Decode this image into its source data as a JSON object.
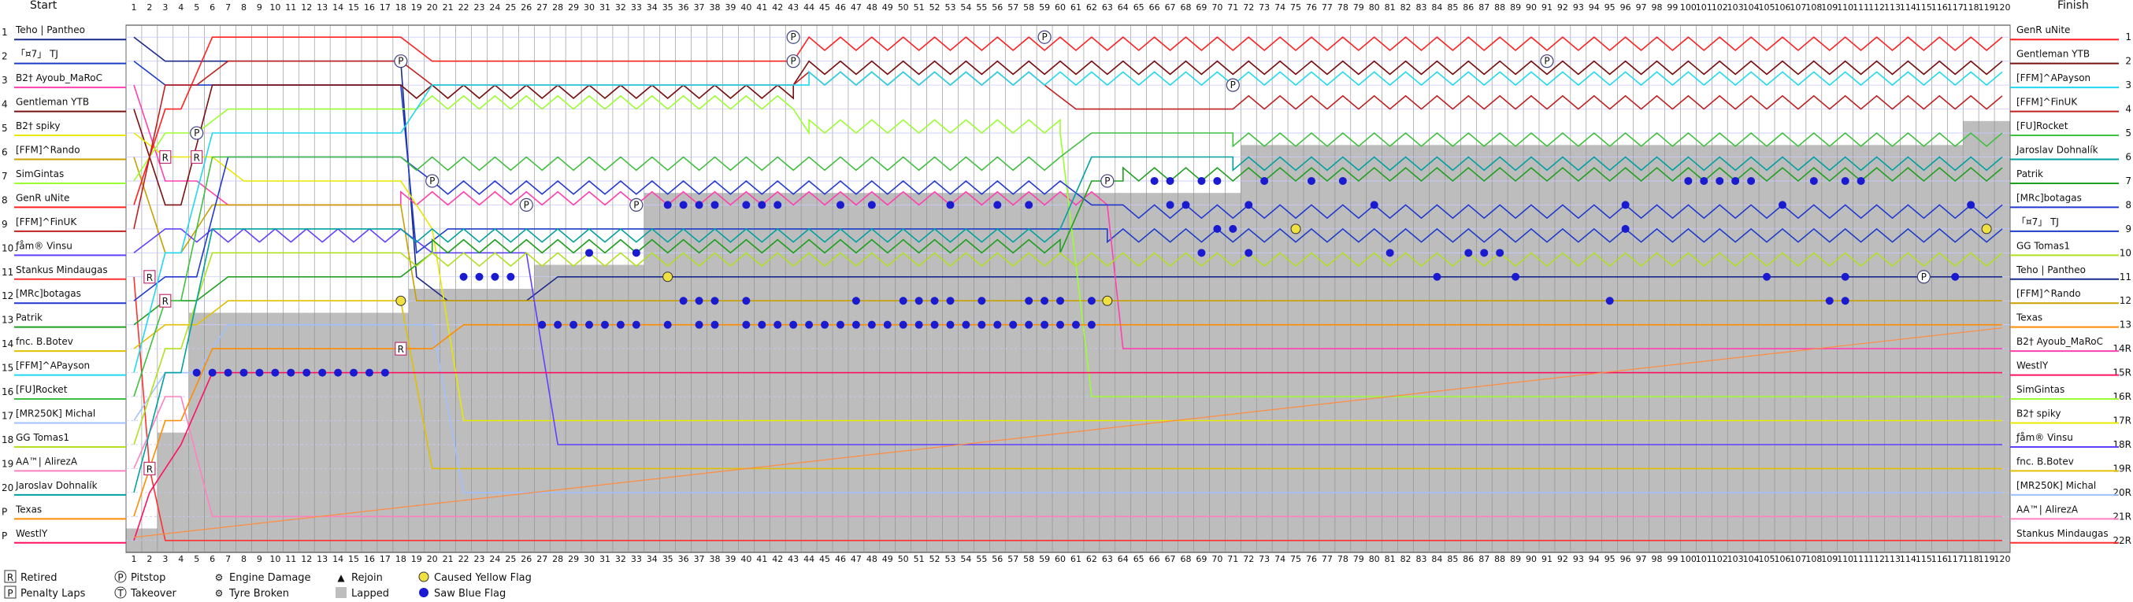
{
  "chart_data": {
    "type": "line",
    "header": {
      "start": "Start",
      "finish": "Finish"
    },
    "laps": 120,
    "positions": 22,
    "start_labels": [
      "1",
      "2",
      "3",
      "4",
      "5",
      "6",
      "7",
      "8",
      "9",
      "10",
      "11",
      "12",
      "13",
      "14",
      "15",
      "16",
      "17",
      "18",
      "19",
      "20",
      "P",
      "P"
    ],
    "start_grid": [
      "Teho | Pantheo",
      "「¤7」 TJ",
      "B2† Ayoub_MaRoC",
      "Gentleman YTB",
      "B2† spiky",
      "[FFM]^Rando",
      "SimGintas",
      "GenR uNite",
      "[FFM]^FinUK",
      "ƒåm® Vinsu",
      "Stankus Mindaugas",
      "[MRc]botagas",
      "Patrik",
      "fnc. B.Botev",
      "[FFM]^APayson",
      "[FU]Rocket",
      "[MR250K] Michal",
      "GG Tomas1",
      "AA™| AlirezA",
      "Jaroslav Dohnalík",
      "Texas",
      "WestlY"
    ],
    "finish_labels": [
      "1",
      "2",
      "3",
      "4",
      "5",
      "6",
      "7",
      "8",
      "9",
      "10",
      "11",
      "12",
      "13",
      "14R",
      "15R",
      "16R",
      "17R",
      "18R",
      "19R",
      "20R",
      "21R",
      "22R"
    ],
    "finish_order": [
      "GenR uNite",
      "Gentleman YTB",
      "[FFM]^APayson",
      "[FFM]^FinUK",
      "[FU]Rocket",
      "Jaroslav Dohnalík",
      "Patrik",
      "[MRc]botagas",
      "「¤7」 TJ",
      "GG Tomas1",
      "Teho | Pantheo",
      "[FFM]^Rando",
      "Texas",
      "B2† Ayoub_MaRoC",
      "WestlY",
      "SimGintas",
      "B2† spiky",
      "ƒåm® Vinsu",
      "fnc. B.Botev",
      "[MR250K] Michal",
      "AA™| AlirezA",
      "Stankus Mindaugas"
    ],
    "series": [
      {
        "name": "Teho | Pantheo",
        "color": "#1a2a8a",
        "points": [
          [
            1,
            1
          ],
          [
            18,
            2
          ],
          [
            19,
            11
          ],
          [
            26,
            12
          ],
          [
            64,
            11
          ],
          [
            120,
            11
          ]
        ]
      },
      {
        "name": "「¤7」 TJ",
        "color": "#1d3cc9",
        "points": [
          [
            1,
            2
          ],
          [
            18,
            3
          ],
          [
            19,
            10
          ],
          [
            63,
            9
          ],
          [
            120,
            9
          ]
        ]
      },
      {
        "name": "B2† Ayoub_MaRoC",
        "color": "#ff40b0",
        "points": [
          [
            1,
            3
          ],
          [
            5,
            7
          ],
          [
            18,
            8
          ],
          [
            26,
            8
          ],
          [
            35,
            8
          ],
          [
            63,
            8
          ],
          [
            64,
            14
          ],
          [
            120,
            14
          ]
        ]
      },
      {
        "name": "Gentleman YTB",
        "color": "#7a1010",
        "points": [
          [
            1,
            4
          ],
          [
            4,
            8
          ],
          [
            18,
            3
          ],
          [
            43,
            3
          ],
          [
            44,
            2
          ],
          [
            120,
            2
          ]
        ]
      },
      {
        "name": "B2† spiky",
        "color": "#e8e800",
        "points": [
          [
            1,
            5
          ],
          [
            6,
            6
          ],
          [
            18,
            7
          ],
          [
            20,
            9
          ],
          [
            64,
            17
          ],
          [
            120,
            17
          ]
        ]
      },
      {
        "name": "[FFM]^Rando",
        "color": "#c8a000",
        "points": [
          [
            1,
            6
          ],
          [
            4,
            10
          ],
          [
            18,
            8
          ],
          [
            19,
            12
          ],
          [
            120,
            12
          ]
        ]
      },
      {
        "name": "SimGintas",
        "color": "#9aff30",
        "points": [
          [
            1,
            7
          ],
          [
            5,
            5
          ],
          [
            19,
            4
          ],
          [
            43,
            4
          ],
          [
            44,
            5
          ],
          [
            60,
            5
          ],
          [
            64,
            16
          ],
          [
            120,
            16
          ]
        ]
      },
      {
        "name": "GenR uNite",
        "color": "#ff2020",
        "points": [
          [
            1,
            8
          ],
          [
            4,
            4
          ],
          [
            18,
            1
          ],
          [
            43,
            2
          ],
          [
            44,
            1
          ],
          [
            120,
            1
          ]
        ]
      },
      {
        "name": "[FFM]^FinUK",
        "color": "#c02020",
        "points": [
          [
            1,
            9
          ],
          [
            5,
            3
          ],
          [
            18,
            2
          ],
          [
            43,
            3
          ],
          [
            59,
            3
          ],
          [
            71,
            4
          ],
          [
            120,
            4
          ]
        ]
      },
      {
        "name": "ƒåm® Vinsu",
        "color": "#6040ff",
        "points": [
          [
            1,
            10
          ],
          [
            4,
            9
          ],
          [
            18,
            9
          ],
          [
            26,
            10
          ],
          [
            64,
            18
          ],
          [
            120,
            18
          ]
        ]
      },
      {
        "name": "Stankus Mindaugas",
        "color": "#ff3030",
        "points": [
          [
            1,
            11
          ],
          [
            2,
            19
          ],
          [
            3,
            22
          ],
          [
            120,
            22
          ]
        ]
      },
      {
        "name": "[MRc]botagas",
        "color": "#2038d0",
        "points": [
          [
            1,
            12
          ],
          [
            5,
            11
          ],
          [
            18,
            6
          ],
          [
            20,
            7
          ],
          [
            60,
            7
          ],
          [
            64,
            8
          ],
          [
            120,
            8
          ]
        ]
      },
      {
        "name": "Patrik",
        "color": "#20a020",
        "points": [
          [
            1,
            13
          ],
          [
            5,
            12
          ],
          [
            18,
            11
          ],
          [
            20,
            10
          ],
          [
            60,
            10
          ],
          [
            64,
            7
          ],
          [
            120,
            7
          ]
        ]
      },
      {
        "name": "fnc. B.Botev",
        "color": "#e0c000",
        "points": [
          [
            1,
            14
          ],
          [
            5,
            13
          ],
          [
            18,
            12
          ],
          [
            64,
            19
          ],
          [
            120,
            19
          ]
        ]
      },
      {
        "name": "[FFM]^APayson",
        "color": "#20d8f0",
        "points": [
          [
            1,
            15
          ],
          [
            4,
            10
          ],
          [
            18,
            5
          ],
          [
            44,
            3
          ],
          [
            120,
            3
          ]
        ]
      },
      {
        "name": "[FU]Rocket",
        "color": "#40c040",
        "points": [
          [
            1,
            16
          ],
          [
            4,
            12
          ],
          [
            18,
            6
          ],
          [
            60,
            6
          ],
          [
            71,
            5
          ],
          [
            120,
            5
          ]
        ]
      },
      {
        "name": "[MR250K] Michal",
        "color": "#a0c0ff",
        "points": [
          [
            1,
            17
          ],
          [
            5,
            15
          ],
          [
            20,
            13
          ],
          [
            64,
            20
          ],
          [
            120,
            20
          ]
        ]
      },
      {
        "name": "GG Tomas1",
        "color": "#b0e020",
        "points": [
          [
            1,
            18
          ],
          [
            4,
            14
          ],
          [
            18,
            10
          ],
          [
            63,
            10
          ],
          [
            120,
            10
          ]
        ]
      },
      {
        "name": "AA™| AlirezA",
        "color": "#ff80c0",
        "points": [
          [
            1,
            19
          ],
          [
            4,
            16
          ],
          [
            64,
            21
          ],
          [
            120,
            21
          ]
        ]
      },
      {
        "name": "Jaroslav Dohnalík",
        "color": "#00a0a0",
        "points": [
          [
            1,
            20
          ],
          [
            4,
            15
          ],
          [
            18,
            9
          ],
          [
            60,
            9
          ],
          [
            71,
            6
          ],
          [
            120,
            6
          ]
        ]
      },
      {
        "name": "Texas",
        "color": "#ff8c00",
        "points": [
          [
            1,
            21
          ],
          [
            4,
            17
          ],
          [
            20,
            14
          ],
          [
            64,
            13
          ],
          [
            120,
            13
          ]
        ]
      },
      {
        "name": "WestlY",
        "color": "#ff1060",
        "points": [
          [
            1,
            22
          ],
          [
            2,
            20
          ],
          [
            4,
            18
          ],
          [
            64,
            15
          ],
          [
            120,
            15
          ]
        ]
      }
    ],
    "lapped_cells": {
      "description": "grey shading",
      "segments": [
        [
          1,
          22,
          22
        ],
        [
          3,
          18,
          22
        ],
        [
          5,
          13,
          22
        ],
        [
          19,
          12,
          22
        ],
        [
          27,
          11,
          22
        ],
        [
          34,
          8,
          22
        ],
        [
          64,
          8,
          22
        ],
        [
          72,
          6,
          22
        ],
        [
          102,
          6,
          22
        ],
        [
          118,
          5,
          22
        ]
      ]
    },
    "markers": [
      {
        "type": "R",
        "lap": 2,
        "pos": 11
      },
      {
        "type": "R",
        "lap": 3,
        "pos": 12
      },
      {
        "type": "R",
        "lap": 3,
        "pos": 6
      },
      {
        "type": "R",
        "lap": 5,
        "pos": 6
      },
      {
        "type": "R",
        "lap": 18,
        "pos": 14
      },
      {
        "type": "R",
        "lap": 2,
        "pos": 19
      },
      {
        "type": "P",
        "lap": 43,
        "pos": 1
      },
      {
        "type": "P",
        "lap": 59,
        "pos": 1
      },
      {
        "type": "P",
        "lap": 43,
        "pos": 2
      },
      {
        "type": "P",
        "lap": 91,
        "pos": 2
      },
      {
        "type": "P",
        "lap": 18,
        "pos": 2
      },
      {
        "type": "P",
        "lap": 71,
        "pos": 3
      },
      {
        "type": "P",
        "lap": 5,
        "pos": 5
      },
      {
        "type": "P",
        "lap": 20,
        "pos": 7
      },
      {
        "type": "P",
        "lap": 63,
        "pos": 7
      },
      {
        "type": "P",
        "lap": 33,
        "pos": 8
      },
      {
        "type": "P",
        "lap": 26,
        "pos": 8
      },
      {
        "type": "P",
        "lap": 115,
        "pos": 11
      },
      {
        "type": "yellow",
        "lap": 18,
        "pos": 12
      },
      {
        "type": "yellow",
        "lap": 35,
        "pos": 11
      },
      {
        "type": "yellow",
        "lap": 63,
        "pos": 12
      },
      {
        "type": "yellow",
        "lap": 75,
        "pos": 9
      },
      {
        "type": "yellow",
        "lap": 119,
        "pos": 9
      }
    ],
    "blue_flags": [
      [
        35,
        8
      ],
      [
        36,
        8
      ],
      [
        37,
        8
      ],
      [
        38,
        8
      ],
      [
        40,
        8
      ],
      [
        41,
        8
      ],
      [
        42,
        8
      ],
      [
        46,
        8
      ],
      [
        48,
        8
      ],
      [
        53,
        8
      ],
      [
        56,
        8
      ],
      [
        58,
        8
      ],
      [
        66,
        7
      ],
      [
        67,
        7
      ],
      [
        69,
        7
      ],
      [
        70,
        7
      ],
      [
        73,
        7
      ],
      [
        76,
        7
      ],
      [
        78,
        7
      ],
      [
        100,
        7
      ],
      [
        101,
        7
      ],
      [
        102,
        7
      ],
      [
        103,
        7
      ],
      [
        104,
        7
      ],
      [
        108,
        7
      ],
      [
        110,
        7
      ],
      [
        111,
        7
      ],
      [
        67,
        8
      ],
      [
        68,
        8
      ],
      [
        72,
        8
      ],
      [
        80,
        8
      ],
      [
        96,
        8
      ],
      [
        106,
        8
      ],
      [
        118,
        8
      ],
      [
        70,
        9
      ],
      [
        71,
        9
      ],
      [
        96,
        9
      ],
      [
        30,
        10
      ],
      [
        33,
        10
      ],
      [
        69,
        10
      ],
      [
        72,
        10
      ],
      [
        81,
        10
      ],
      [
        86,
        10
      ],
      [
        87,
        10
      ],
      [
        88,
        10
      ],
      [
        22,
        11
      ],
      [
        23,
        11
      ],
      [
        24,
        11
      ],
      [
        25,
        11
      ],
      [
        84,
        11
      ],
      [
        89,
        11
      ],
      [
        105,
        11
      ],
      [
        110,
        11
      ],
      [
        117,
        11
      ],
      [
        36,
        12
      ],
      [
        37,
        12
      ],
      [
        38,
        12
      ],
      [
        40,
        12
      ],
      [
        47,
        12
      ],
      [
        50,
        12
      ],
      [
        51,
        12
      ],
      [
        52,
        12
      ],
      [
        53,
        12
      ],
      [
        55,
        12
      ],
      [
        58,
        12
      ],
      [
        59,
        12
      ],
      [
        60,
        12
      ],
      [
        62,
        12
      ],
      [
        95,
        12
      ],
      [
        109,
        12
      ],
      [
        110,
        12
      ],
      [
        27,
        13
      ],
      [
        28,
        13
      ],
      [
        29,
        13
      ],
      [
        30,
        13
      ],
      [
        31,
        13
      ],
      [
        32,
        13
      ],
      [
        33,
        13
      ],
      [
        35,
        13
      ],
      [
        37,
        13
      ],
      [
        38,
        13
      ],
      [
        40,
        13
      ],
      [
        41,
        13
      ],
      [
        42,
        13
      ],
      [
        43,
        13
      ],
      [
        44,
        13
      ],
      [
        45,
        13
      ],
      [
        46,
        13
      ],
      [
        47,
        13
      ],
      [
        48,
        13
      ],
      [
        49,
        13
      ],
      [
        50,
        13
      ],
      [
        51,
        13
      ],
      [
        52,
        13
      ],
      [
        53,
        13
      ],
      [
        54,
        13
      ],
      [
        55,
        13
      ],
      [
        56,
        13
      ],
      [
        57,
        13
      ],
      [
        58,
        13
      ],
      [
        59,
        13
      ],
      [
        60,
        13
      ],
      [
        61,
        13
      ],
      [
        62,
        13
      ],
      [
        5,
        15
      ],
      [
        6,
        15
      ],
      [
        7,
        15
      ],
      [
        8,
        15
      ],
      [
        9,
        15
      ],
      [
        10,
        15
      ],
      [
        11,
        15
      ],
      [
        12,
        15
      ],
      [
        13,
        15
      ],
      [
        14,
        15
      ],
      [
        15,
        15
      ],
      [
        16,
        15
      ],
      [
        17,
        15
      ]
    ]
  },
  "legend": [
    {
      "key": "retired",
      "symbol": "R",
      "label": "Retired"
    },
    {
      "key": "pitstop",
      "symbol": "P",
      "label": "Pitstop"
    },
    {
      "key": "engine",
      "symbol": "⚙",
      "label": "Engine Damage"
    },
    {
      "key": "rejoin",
      "symbol": "▲",
      "label": "Rejoin"
    },
    {
      "key": "yellow",
      "symbol": "●",
      "label": "Caused Yellow Flag"
    },
    {
      "key": "penalty",
      "symbol": "P",
      "label": "Penalty Laps"
    },
    {
      "key": "takeover",
      "symbol": "T",
      "label": "Takeover"
    },
    {
      "key": "tyre",
      "symbol": "⚙",
      "label": "Tyre Broken"
    },
    {
      "key": "lapped",
      "symbol": "■",
      "label": "Lapped"
    },
    {
      "key": "blue",
      "symbol": "●",
      "label": "Saw Blue Flag"
    }
  ],
  "colors": {
    "grid": "#8a8a8a",
    "lapped": "#bdbdbd",
    "blue_flag": "#1a1ad0",
    "yellow_flag": "#f0e040"
  }
}
